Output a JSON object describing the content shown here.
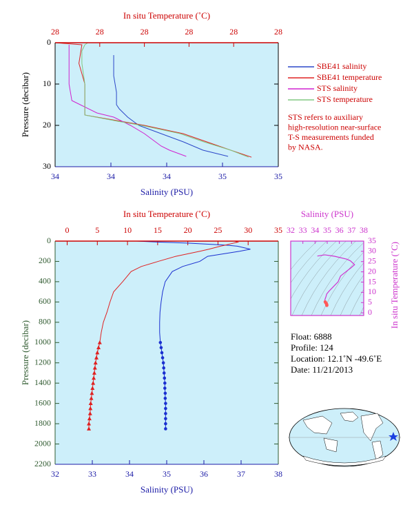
{
  "chart_data": [
    {
      "type": "profile",
      "x_label": "Salinity (PSU)",
      "x2_label": "In situ Temperature (˚C)",
      "y_label": "Pressure (decibar)",
      "xlim": [
        34.0,
        34.8
      ],
      "xticks": [
        {
          "value": 34.0,
          "label": "34"
        },
        {
          "value": 34.2,
          "label": "34"
        },
        {
          "value": 34.4,
          "label": "34"
        },
        {
          "value": 34.6,
          "label": "35"
        },
        {
          "value": 34.8,
          "label": "35"
        }
      ],
      "x2lim": [
        27.6,
        28.35
      ],
      "x2ticks": [
        {
          "value": 27.6,
          "label": "28"
        },
        {
          "value": 27.75,
          "label": "28"
        },
        {
          "value": 27.9,
          "label": "28"
        },
        {
          "value": 28.05,
          "label": "28"
        },
        {
          "value": 28.2,
          "label": "28"
        },
        {
          "value": 28.35,
          "label": "28"
        }
      ],
      "ylim": [
        0,
        30
      ],
      "yticks": [
        0,
        10,
        20,
        30
      ],
      "plot_background": "#cdeffa",
      "axis_colors": {
        "x": "#1a1aa6",
        "x2": "#cc0000",
        "y": "#000000"
      },
      "legend": "right",
      "series": [
        {
          "name": "SBE41 salinity",
          "color": "#2a46c8",
          "axis": "x",
          "pressure": [
            3,
            8,
            12,
            15,
            16,
            18,
            20,
            22,
            24,
            26,
            27.5
          ],
          "values": [
            34.21,
            34.21,
            34.22,
            34.22,
            34.23,
            34.26,
            34.3,
            34.38,
            34.46,
            34.53,
            34.62
          ]
        },
        {
          "name": "SBE41 temperature",
          "color": "#e02020",
          "axis": "x2",
          "pressure": [
            0,
            0.5,
            5,
            10,
            15,
            17.5,
            19,
            20,
            22,
            24,
            26,
            27.7
          ],
          "values": [
            27.6,
            27.69,
            27.68,
            27.7,
            27.7,
            27.7,
            27.82,
            27.9,
            28.03,
            28.11,
            28.19,
            28.26
          ]
        },
        {
          "name": "STS salinity",
          "color": "#d020d0",
          "axis": "x",
          "pressure": [
            0.5,
            2,
            10,
            14,
            15,
            17,
            18,
            20,
            22,
            24,
            25,
            26,
            27.5
          ],
          "values": [
            34.05,
            34.05,
            34.05,
            34.06,
            34.09,
            34.15,
            34.21,
            34.27,
            34.32,
            34.36,
            34.38,
            34.41,
            34.47
          ]
        },
        {
          "name": "STS temperature",
          "color": "#80c880",
          "axis": "x2",
          "pressure": [
            0,
            0.5,
            2,
            5,
            10,
            15,
            17.5,
            19,
            20,
            22,
            24,
            26,
            27.7
          ],
          "values": [
            27.71,
            27.7,
            27.69,
            27.69,
            27.7,
            27.7,
            27.7,
            27.81,
            27.89,
            28.02,
            28.1,
            28.19,
            28.25
          ]
        }
      ],
      "note": [
        "STS refers to auxiliary",
        "high-resolution near-surface",
        "T-S measurements funded",
        "by NASA."
      ]
    },
    {
      "type": "profile",
      "x_label": "Salinity (PSU)",
      "x2_label": "In situ Temperature (˚C)",
      "y_label": "Pressure (decibar)",
      "xlim": [
        32,
        38
      ],
      "xticks": [
        32,
        33,
        34,
        35,
        36,
        37,
        38
      ],
      "x2lim": [
        -2,
        35
      ],
      "x2ticks": [
        0,
        5,
        10,
        15,
        20,
        25,
        30,
        35
      ],
      "ylim": [
        0,
        2200
      ],
      "yticks": [
        0,
        200,
        400,
        600,
        800,
        1000,
        1200,
        1400,
        1600,
        1800,
        2000,
        2200
      ],
      "plot_background": "#cdeffa",
      "axis_colors": {
        "x": "#1a1aa6",
        "x2": "#cc0000",
        "y": "#2f5a2f"
      },
      "markers_from": 1000,
      "pressure": [
        0,
        10,
        20,
        40,
        50,
        80,
        100,
        150,
        200,
        250,
        300,
        400,
        500,
        600,
        700,
        800,
        900,
        1000,
        1050,
        1100,
        1150,
        1200,
        1250,
        1300,
        1350,
        1400,
        1450,
        1500,
        1550,
        1600,
        1650,
        1700,
        1750,
        1800,
        1850
      ],
      "series": [
        {
          "color": "#1a2fd0",
          "axis": "x",
          "marker": "circle",
          "values": [
            34.19,
            34.8,
            35.6,
            36.6,
            36.9,
            37.25,
            36.96,
            36.1,
            35.89,
            35.43,
            35.15,
            34.96,
            34.89,
            34.85,
            34.82,
            34.81,
            34.81,
            34.83,
            34.85,
            34.87,
            34.89,
            34.91,
            34.92,
            34.93,
            34.94,
            34.95,
            34.95,
            34.96,
            34.96,
            34.97,
            34.97,
            34.97,
            34.97,
            34.97,
            34.97
          ]
        },
        {
          "color": "#e02020",
          "axis": "x2",
          "marker": "triangle",
          "values": [
            27.7,
            28.3,
            27.6,
            26.2,
            25.4,
            23.5,
            22.0,
            18.0,
            15.1,
            12.3,
            10.6,
            9.2,
            7.7,
            7.1,
            6.6,
            6.0,
            5.65,
            5.4,
            5.2,
            5.0,
            4.85,
            4.7,
            4.6,
            4.5,
            4.4,
            4.3,
            4.2,
            4.1,
            4.0,
            3.9,
            3.85,
            3.8,
            3.7,
            3.6,
            3.6
          ]
        }
      ]
    },
    {
      "type": "ts",
      "x_label": "Salinity (PSU)",
      "y_label": "In situ Temperature (˚C)",
      "xlim": [
        32,
        38
      ],
      "xticks": [
        32,
        33,
        34,
        35,
        36,
        37,
        38
      ],
      "ylim": [
        -1.3,
        35
      ],
      "yticks": [
        0,
        5,
        10,
        15,
        20,
        25,
        30,
        35
      ],
      "plot_background": "#cdeffa",
      "axis_color": "#cc33cc",
      "color": "#d030d0",
      "marker_color": "#ff5a5a"
    }
  ],
  "info": {
    "lines": [
      "Float:  6888",
      "Profile:  124",
      "Location:  12.1˚N  -49.6˚E",
      "Date:  11/21/2013"
    ]
  }
}
